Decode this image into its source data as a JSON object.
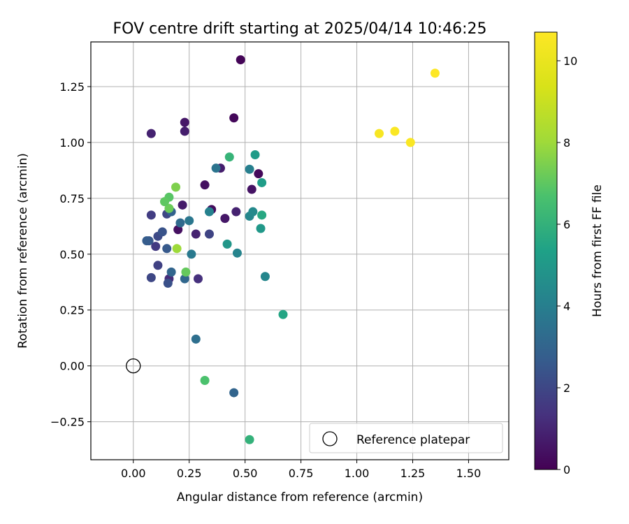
{
  "chart_data": {
    "type": "scatter",
    "title": "FOV centre drift starting at 2025/04/14 10:46:25",
    "xlabel": "Angular distance from reference (arcmin)",
    "ylabel": "Rotation from reference (arcmin)",
    "xlim": [
      -0.19,
      1.68
    ],
    "ylim": [
      -0.42,
      1.45
    ],
    "xticks": [
      0.0,
      0.25,
      0.5,
      0.75,
      1.0,
      1.25,
      1.5
    ],
    "xtick_labels": [
      "0.00",
      "0.25",
      "0.50",
      "0.75",
      "1.00",
      "1.25",
      "1.50"
    ],
    "yticks": [
      -0.25,
      0.0,
      0.25,
      0.5,
      0.75,
      1.0,
      1.25
    ],
    "ytick_labels": [
      "−0.25",
      "0.00",
      "0.25",
      "0.50",
      "0.75",
      "1.00",
      "1.25"
    ],
    "grid": true,
    "colorbar": {
      "label": "Hours from first FF file",
      "range": [
        0,
        10.7
      ],
      "ticks": [
        0,
        2,
        4,
        6,
        8,
        10
      ],
      "tick_labels": [
        "0",
        "2",
        "4",
        "6",
        "8",
        "10"
      ],
      "colormap": "viridis"
    },
    "legend": {
      "position": "lower-right",
      "entries": [
        "Reference platepar"
      ]
    },
    "reference_point": {
      "x": 0.0,
      "y": 0.0,
      "label": "Reference platepar"
    },
    "points": [
      {
        "x": 0.48,
        "y": 1.37,
        "h": 0.1
      },
      {
        "x": 0.45,
        "y": 1.11,
        "h": 0.2
      },
      {
        "x": 0.23,
        "y": 1.09,
        "h": 0.6
      },
      {
        "x": 0.23,
        "y": 1.05,
        "h": 0.8
      },
      {
        "x": 0.08,
        "y": 1.04,
        "h": 0.9
      },
      {
        "x": 0.56,
        "y": 0.86,
        "h": 0.2
      },
      {
        "x": 0.39,
        "y": 0.885,
        "h": 0.8
      },
      {
        "x": 0.53,
        "y": 0.79,
        "h": 0.5
      },
      {
        "x": 0.32,
        "y": 0.81,
        "h": 0.4
      },
      {
        "x": 0.35,
        "y": 0.7,
        "h": 0.3
      },
      {
        "x": 0.46,
        "y": 0.69,
        "h": 0.9
      },
      {
        "x": 0.41,
        "y": 0.66,
        "h": 0.6
      },
      {
        "x": 0.22,
        "y": 0.72,
        "h": 0.7
      },
      {
        "x": 0.2,
        "y": 0.61,
        "h": 0.4
      },
      {
        "x": 0.28,
        "y": 0.59,
        "h": 0.9
      },
      {
        "x": 0.29,
        "y": 0.39,
        "h": 1.3
      },
      {
        "x": 0.34,
        "y": 0.59,
        "h": 1.9
      },
      {
        "x": 0.08,
        "y": 0.675,
        "h": 1.7
      },
      {
        "x": 0.15,
        "y": 0.68,
        "h": 2.0
      },
      {
        "x": 0.1,
        "y": 0.535,
        "h": 1.6
      },
      {
        "x": 0.11,
        "y": 0.58,
        "h": 2.1
      },
      {
        "x": 0.13,
        "y": 0.6,
        "h": 2.4
      },
      {
        "x": 0.07,
        "y": 0.56,
        "h": 2.5
      },
      {
        "x": 0.06,
        "y": 0.56,
        "h": 2.7
      },
      {
        "x": 0.11,
        "y": 0.45,
        "h": 1.8
      },
      {
        "x": 0.08,
        "y": 0.395,
        "h": 2.0
      },
      {
        "x": 0.15,
        "y": 0.525,
        "h": 2.6
      },
      {
        "x": 0.16,
        "y": 0.39,
        "h": 1.2
      },
      {
        "x": 0.155,
        "y": 0.37,
        "h": 2.3
      },
      {
        "x": 0.17,
        "y": 0.42,
        "h": 3.0
      },
      {
        "x": 0.17,
        "y": 0.69,
        "h": 2.9
      },
      {
        "x": 0.23,
        "y": 0.39,
        "h": 3.1
      },
      {
        "x": 0.21,
        "y": 0.64,
        "h": 3.2
      },
      {
        "x": 0.25,
        "y": 0.65,
        "h": 3.7
      },
      {
        "x": 0.26,
        "y": 0.5,
        "h": 3.8
      },
      {
        "x": 0.28,
        "y": 0.12,
        "h": 3.4
      },
      {
        "x": 0.45,
        "y": -0.12,
        "h": 3.0
      },
      {
        "x": 0.37,
        "y": 0.885,
        "h": 3.6
      },
      {
        "x": 0.34,
        "y": 0.69,
        "h": 4.1
      },
      {
        "x": 0.52,
        "y": 0.88,
        "h": 4.0
      },
      {
        "x": 0.52,
        "y": 0.67,
        "h": 4.3
      },
      {
        "x": 0.535,
        "y": 0.69,
        "h": 4.4
      },
      {
        "x": 0.465,
        "y": 0.505,
        "h": 4.2
      },
      {
        "x": 0.59,
        "y": 0.4,
        "h": 4.3
      },
      {
        "x": 0.42,
        "y": 0.545,
        "h": 4.9
      },
      {
        "x": 0.545,
        "y": 0.945,
        "h": 5.1
      },
      {
        "x": 0.575,
        "y": 0.82,
        "h": 5.2
      },
      {
        "x": 0.57,
        "y": 0.615,
        "h": 5.0
      },
      {
        "x": 0.575,
        "y": 0.675,
        "h": 5.6
      },
      {
        "x": 0.43,
        "y": 0.935,
        "h": 6.1
      },
      {
        "x": 0.67,
        "y": 0.23,
        "h": 5.5
      },
      {
        "x": 0.52,
        "y": -0.33,
        "h": 6.0
      },
      {
        "x": 0.32,
        "y": -0.065,
        "h": 6.7
      },
      {
        "x": 0.235,
        "y": 0.42,
        "h": 7.1
      },
      {
        "x": 0.16,
        "y": 0.705,
        "h": 7.2
      },
      {
        "x": 0.16,
        "y": 0.755,
        "h": 6.9
      },
      {
        "x": 0.14,
        "y": 0.735,
        "h": 7.0
      },
      {
        "x": 0.19,
        "y": 0.8,
        "h": 7.5
      },
      {
        "x": 0.195,
        "y": 0.525,
        "h": 8.0
      },
      {
        "x": 1.1,
        "y": 1.04,
        "h": 10.5
      },
      {
        "x": 1.17,
        "y": 1.05,
        "h": 10.6
      },
      {
        "x": 1.24,
        "y": 1.0,
        "h": 10.6
      },
      {
        "x": 1.35,
        "y": 1.31,
        "h": 10.7
      }
    ]
  }
}
